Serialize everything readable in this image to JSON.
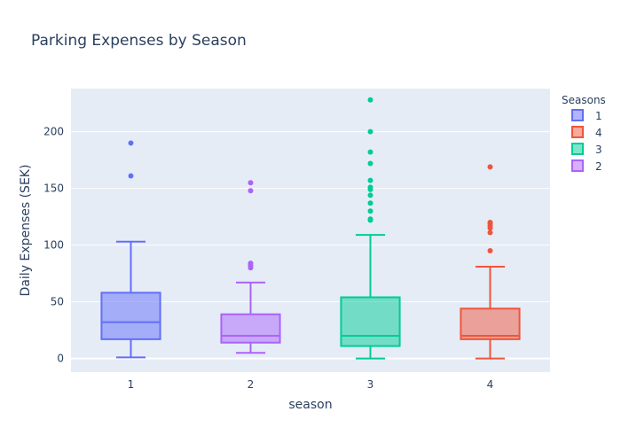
{
  "chart_data": {
    "type": "box",
    "title": "Parking Expenses by Season",
    "xlabel": "season",
    "ylabel": "Daily Expenses (SEK)",
    "categories": [
      "1",
      "2",
      "3",
      "4"
    ],
    "ylim": [
      -12,
      238
    ],
    "yticks": [
      0,
      50,
      100,
      150,
      200
    ],
    "grid": true,
    "legend": {
      "title": "Seasons",
      "placement": "top-right",
      "entries": [
        "1",
        "4",
        "3",
        "2"
      ]
    },
    "series": [
      {
        "name": "1",
        "category": "1",
        "color": "#636efa",
        "min": 1,
        "q1": 17,
        "median": 32,
        "q3": 58,
        "max": 103,
        "outliers": [
          161,
          190
        ]
      },
      {
        "name": "2",
        "category": "2",
        "color": "#ab63fa",
        "min": 5,
        "q1": 14,
        "median": 20,
        "q3": 39,
        "max": 67,
        "outliers": [
          80,
          82,
          84,
          148,
          155
        ]
      },
      {
        "name": "3",
        "category": "3",
        "color": "#00cc96",
        "min": 0,
        "q1": 11,
        "median": 20,
        "q3": 54,
        "max": 109,
        "outliers": [
          122,
          123,
          130,
          137,
          144,
          149,
          151,
          157,
          172,
          182,
          200,
          228
        ]
      },
      {
        "name": "4",
        "category": "4",
        "color": "#ef553b",
        "min": 0,
        "q1": 17,
        "median": 20,
        "q3": 44,
        "max": 81,
        "outliers": [
          95,
          111,
          115,
          117,
          119,
          120,
          169
        ]
      }
    ]
  }
}
